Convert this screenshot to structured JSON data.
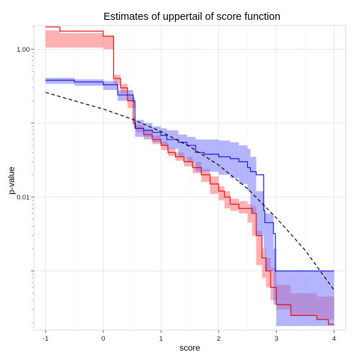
{
  "chart_data": {
    "type": "line",
    "title": "Estimates of uppertail of score function",
    "xlabel": "score",
    "ylabel": "p-value",
    "x_ticks": [
      -1,
      0,
      1,
      2,
      3,
      4
    ],
    "y_ticks_labeled": [
      {
        "value": 1.0,
        "label": "1.00"
      },
      {
        "value": 0.01,
        "label": "0.01"
      }
    ],
    "y_ticks_minor": [
      0.1,
      0.001
    ],
    "xlim": [
      -1.2,
      4.2
    ],
    "ylim_log10": [
      -3.8,
      0.32
    ],
    "y_scale": "log10",
    "grid": true,
    "colors": {
      "red_line": "#dd1111",
      "red_band": "#ff6f6f",
      "blue_line": "#1a1acc",
      "blue_band": "#7777ff",
      "reference": "#000000"
    },
    "series": [
      {
        "color": "red",
        "style": "step",
        "points": [
          [
            -1.0,
            2.0
          ],
          [
            -0.75,
            1.75
          ],
          [
            0.0,
            1.5
          ],
          [
            0.18,
            0.4
          ],
          [
            0.3,
            0.3
          ],
          [
            0.42,
            0.2
          ],
          [
            0.52,
            0.1
          ],
          [
            0.56,
            0.085
          ],
          [
            0.7,
            0.07
          ],
          [
            0.85,
            0.06
          ],
          [
            1.0,
            0.05
          ],
          [
            1.12,
            0.04
          ],
          [
            1.25,
            0.035
          ],
          [
            1.4,
            0.03
          ],
          [
            1.55,
            0.025
          ],
          [
            1.7,
            0.02
          ],
          [
            1.85,
            0.015
          ],
          [
            2.0,
            0.012
          ],
          [
            2.1,
            0.01
          ],
          [
            2.2,
            0.008
          ],
          [
            2.35,
            0.007
          ],
          [
            2.5,
            0.007
          ],
          [
            2.58,
            0.006
          ],
          [
            2.65,
            0.003
          ],
          [
            2.75,
            0.0015
          ],
          [
            2.82,
            0.001
          ],
          [
            2.9,
            0.0006
          ],
          [
            3.0,
            0.00035
          ],
          [
            3.25,
            0.00025
          ],
          [
            3.7,
            0.00022
          ],
          [
            3.9,
            0.00019
          ],
          [
            4.0,
            0.00019
          ]
        ]
      },
      {
        "color": "blue",
        "style": "step",
        "points": [
          [
            -1.0,
            0.38
          ],
          [
            -0.5,
            0.36
          ],
          [
            0.0,
            0.33
          ],
          [
            0.25,
            0.24
          ],
          [
            0.52,
            0.2
          ],
          [
            0.55,
            0.085
          ],
          [
            0.7,
            0.08
          ],
          [
            0.85,
            0.075
          ],
          [
            1.0,
            0.068
          ],
          [
            1.1,
            0.06
          ],
          [
            1.3,
            0.055
          ],
          [
            1.45,
            0.05
          ],
          [
            1.6,
            0.04
          ],
          [
            1.75,
            0.038
          ],
          [
            2.0,
            0.035
          ],
          [
            2.2,
            0.033
          ],
          [
            2.35,
            0.03
          ],
          [
            2.5,
            0.025
          ],
          [
            2.55,
            0.022
          ],
          [
            2.65,
            0.02
          ],
          [
            2.78,
            0.0065
          ],
          [
            2.8,
            0.0045
          ],
          [
            2.95,
            0.0032
          ],
          [
            2.98,
            0.001
          ],
          [
            3.0,
            0.001
          ],
          [
            4.0,
            0.001
          ]
        ]
      },
      {
        "color": "black",
        "style": "dashed",
        "points": [
          [
            -1.0,
            0.26
          ],
          [
            -0.5,
            0.2
          ],
          [
            0.0,
            0.155
          ],
          [
            0.5,
            0.113
          ],
          [
            1.0,
            0.077
          ],
          [
            1.5,
            0.048
          ],
          [
            2.0,
            0.027
          ],
          [
            2.5,
            0.013
          ],
          [
            3.0,
            0.0052
          ],
          [
            3.5,
            0.0019
          ],
          [
            4.0,
            0.00055
          ]
        ]
      }
    ],
    "bands": [
      {
        "color": "red",
        "segments": [
          [
            -1.0,
            -0.75,
            1.05,
            1.8
          ],
          [
            -0.75,
            0.0,
            1.05,
            1.65
          ],
          [
            0.0,
            0.18,
            1.0,
            1.5
          ],
          [
            0.18,
            0.3,
            0.33,
            0.45
          ],
          [
            0.3,
            0.42,
            0.25,
            0.34
          ],
          [
            0.42,
            0.52,
            0.16,
            0.24
          ],
          [
            0.52,
            0.56,
            0.09,
            0.12
          ],
          [
            0.56,
            0.7,
            0.075,
            0.095
          ],
          [
            0.7,
            0.85,
            0.065,
            0.08
          ],
          [
            0.85,
            1.0,
            0.052,
            0.068
          ],
          [
            1.0,
            1.12,
            0.043,
            0.056
          ],
          [
            1.12,
            1.25,
            0.036,
            0.046
          ],
          [
            1.25,
            1.4,
            0.031,
            0.04
          ],
          [
            1.4,
            1.55,
            0.026,
            0.035
          ],
          [
            1.55,
            1.7,
            0.021,
            0.03
          ],
          [
            1.7,
            1.85,
            0.016,
            0.024
          ],
          [
            1.85,
            2.0,
            0.011,
            0.019
          ],
          [
            2.0,
            2.1,
            0.009,
            0.014
          ],
          [
            2.1,
            2.2,
            0.007,
            0.012
          ],
          [
            2.2,
            2.35,
            0.0065,
            0.0095
          ],
          [
            2.35,
            2.5,
            0.006,
            0.0088
          ],
          [
            2.5,
            2.58,
            0.0045,
            0.008
          ],
          [
            2.58,
            2.65,
            0.003,
            0.0075
          ],
          [
            2.65,
            2.75,
            0.0012,
            0.0035
          ],
          [
            2.75,
            2.82,
            0.0008,
            0.002
          ],
          [
            2.82,
            2.9,
            0.0006,
            0.0015
          ],
          [
            2.9,
            3.0,
            0.0004,
            0.0011
          ],
          [
            3.0,
            3.25,
            0.0003,
            0.00065
          ],
          [
            3.25,
            3.7,
            0.00025,
            0.0005
          ],
          [
            3.7,
            4.0,
            0.00022,
            0.00045
          ]
        ]
      },
      {
        "color": "blue",
        "segments": [
          [
            -1.0,
            -0.5,
            0.34,
            0.41
          ],
          [
            -0.5,
            0.0,
            0.32,
            0.39
          ],
          [
            0.0,
            0.25,
            0.28,
            0.37
          ],
          [
            0.25,
            0.52,
            0.2,
            0.28
          ],
          [
            0.52,
            0.55,
            0.16,
            0.22
          ],
          [
            0.55,
            0.7,
            0.065,
            0.11
          ],
          [
            0.7,
            0.85,
            0.06,
            0.1
          ],
          [
            0.85,
            1.0,
            0.055,
            0.09
          ],
          [
            1.0,
            1.1,
            0.05,
            0.085
          ],
          [
            1.1,
            1.3,
            0.045,
            0.08
          ],
          [
            1.3,
            1.45,
            0.035,
            0.07
          ],
          [
            1.45,
            1.6,
            0.03,
            0.065
          ],
          [
            1.6,
            1.75,
            0.022,
            0.06
          ],
          [
            1.75,
            2.0,
            0.022,
            0.06
          ],
          [
            2.0,
            2.2,
            0.02,
            0.058
          ],
          [
            2.2,
            2.35,
            0.018,
            0.055
          ],
          [
            2.35,
            2.5,
            0.015,
            0.05
          ],
          [
            2.5,
            2.55,
            0.012,
            0.045
          ],
          [
            2.55,
            2.65,
            0.006,
            0.035
          ],
          [
            2.65,
            2.78,
            0.003,
            0.012
          ],
          [
            2.78,
            2.8,
            0.002,
            0.008
          ],
          [
            2.8,
            2.95,
            0.001,
            0.006
          ],
          [
            2.95,
            3.0,
            0.00035,
            0.002
          ],
          [
            3.0,
            3.25,
            0.00018,
            0.001
          ],
          [
            3.25,
            4.0,
            0.00018,
            0.001
          ]
        ]
      }
    ]
  }
}
